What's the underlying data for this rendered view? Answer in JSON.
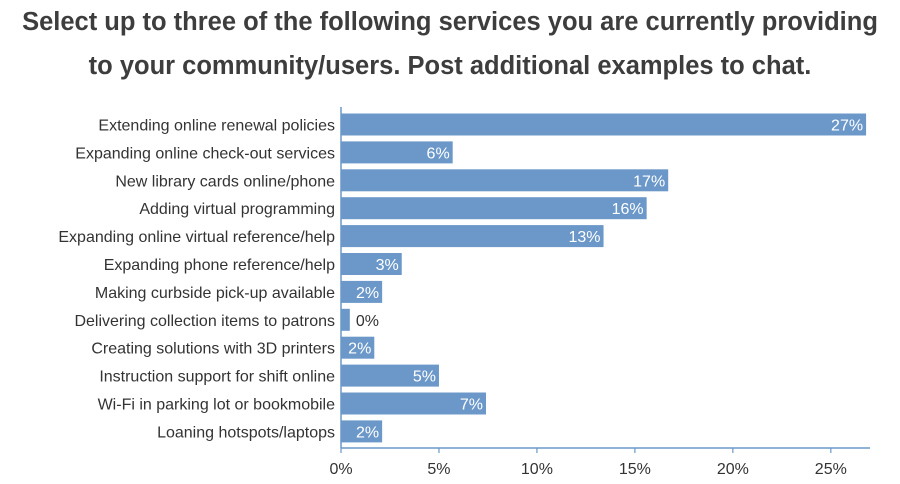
{
  "chart_data": {
    "type": "bar",
    "orientation": "horizontal",
    "title_lines": [
      "Select up to three of the following services you are currently providing",
      "to your community/users. Post additional examples to chat."
    ],
    "categories": [
      "Extending online renewal policies",
      "Expanding online check-out services",
      "New library cards online/phone",
      "Adding virtual programming",
      "Expanding online virtual reference/help",
      "Expanding phone reference/help",
      "Making curbside pick-up available",
      "Delivering collection items to patrons",
      "Creating solutions with 3D printers",
      "Instruction support for shift online",
      "Wi-Fi in parking lot or bookmobile",
      "Loaning hotspots/laptops"
    ],
    "values": [
      27,
      6,
      17,
      16,
      13,
      3,
      2,
      0,
      2,
      5,
      7,
      2
    ],
    "value_labels": [
      "27%",
      "6%",
      "17%",
      "16%",
      "13%",
      "3%",
      "2%",
      "0%",
      "2%",
      "5%",
      "7%",
      "2%"
    ],
    "xlim": [
      0,
      27
    ],
    "xticks": [
      0,
      5,
      10,
      15,
      20,
      25
    ],
    "xtick_labels": [
      "0%",
      "5%",
      "10%",
      "15%",
      "20%",
      "25%"
    ],
    "bar_values_exact": [
      26.8,
      5.7,
      16.7,
      15.6,
      13.4,
      3.1,
      2.1,
      0.45,
      1.7,
      5.0,
      7.4,
      2.1
    ],
    "bar_color": "#6b98c9",
    "axis_color": "#6b98c9",
    "grid": false,
    "legend": "none"
  }
}
